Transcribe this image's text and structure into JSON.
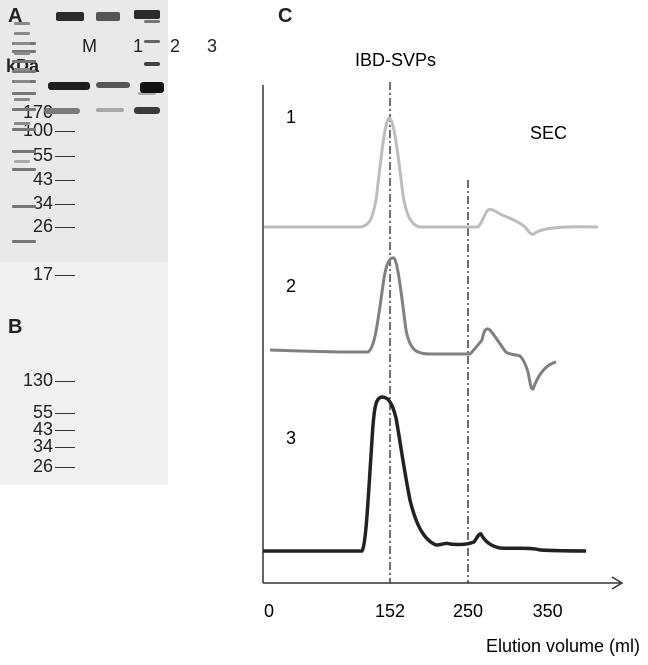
{
  "panels": {
    "a_label": "A",
    "b_label": "B",
    "c_label": "C"
  },
  "gel_a": {
    "unit_label": "kDa",
    "lanes": [
      "M",
      "1",
      "2",
      "3"
    ],
    "markers": [
      "170",
      "100",
      "55",
      "43",
      "34",
      "26",
      "17"
    ]
  },
  "gel_b": {
    "markers": [
      "130",
      "55",
      "43",
      "34",
      "26"
    ]
  },
  "chart_data": {
    "type": "line",
    "title": "SEC",
    "peak_label": "IBD-SVPs",
    "xlabel": "Elution volume (ml)",
    "x_ticks": [
      "0",
      "152",
      "250",
      "350"
    ],
    "reference_lines_x": [
      152,
      250
    ],
    "series": [
      {
        "name": "1",
        "color": "#bdbdbd"
      },
      {
        "name": "2",
        "color": "#808080"
      },
      {
        "name": "3",
        "color": "#222222"
      }
    ]
  },
  "colors": {
    "trace1": "#bdbdbd",
    "trace2": "#808080",
    "trace3": "#222222"
  }
}
